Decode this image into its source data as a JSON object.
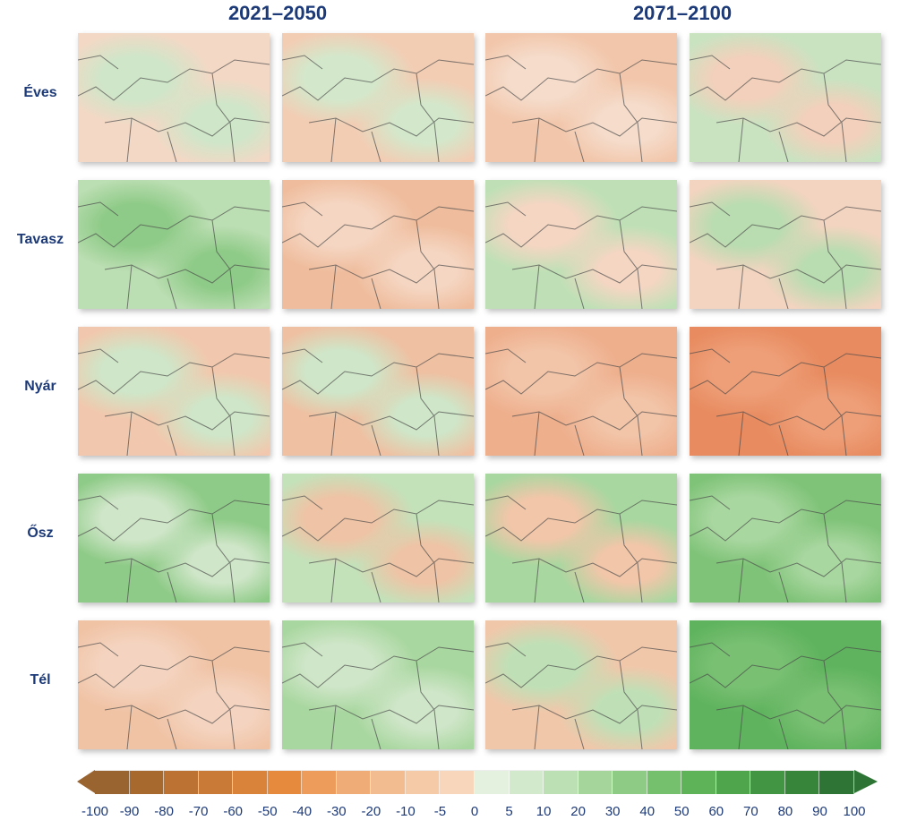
{
  "headers": [
    "2021–2050",
    "2071–2100"
  ],
  "rows": [
    {
      "label": "Éves",
      "panels": [
        [
          "#f3d8c5",
          "#cfe6c8"
        ],
        [
          "#f2cdb4",
          "#d3e8cb"
        ],
        [
          "#f2c6aa",
          "#f5dccb"
        ],
        [
          "#c9e3c1",
          "#f2d0bb"
        ]
      ]
    },
    {
      "label": "Tavasz",
      "panels": [
        [
          "#bcdeb3",
          "#8fcb88"
        ],
        [
          "#efbd9e",
          "#f5d6c2"
        ],
        [
          "#bfe0b6",
          "#f4d6c3"
        ],
        [
          "#f3d4c0",
          "#b9dcb0"
        ]
      ]
    },
    {
      "label": "Nyár",
      "panels": [
        [
          "#f1c8ad",
          "#cfe6c8"
        ],
        [
          "#efc0a2",
          "#cfe6c8"
        ],
        [
          "#eeaf8d",
          "#f2c4a8"
        ],
        [
          "#e88b60",
          "#ee9f78"
        ]
      ]
    },
    {
      "label": "Ősz",
      "panels": [
        [
          "#8fcb88",
          "#cfe6c8"
        ],
        [
          "#c3e2ba",
          "#efc3a5"
        ],
        [
          "#a8d79f",
          "#f1c6a9"
        ],
        [
          "#7fc378",
          "#a9d7a0"
        ]
      ]
    },
    {
      "label": "Tél",
      "panels": [
        [
          "#f0c3a5",
          "#f4d4c0"
        ],
        [
          "#a9d7a0",
          "#cfe6c8"
        ],
        [
          "#f1c7aa",
          "#bfe0b6"
        ],
        [
          "#5fb35e",
          "#79c073"
        ]
      ]
    }
  ],
  "colorbar": {
    "ticks": [
      "-100",
      "-90",
      "-80",
      "-70",
      "-60",
      "-50",
      "-40",
      "-30",
      "-20",
      "-10",
      "-5",
      "0",
      "5",
      "10",
      "20",
      "30",
      "40",
      "50",
      "60",
      "70",
      "80",
      "90",
      "100"
    ],
    "colors": [
      "#9a6430",
      "#a8692e",
      "#bb7232",
      "#c97a36",
      "#d8823a",
      "#e68b3e",
      "#ed9c5c",
      "#f0ac76",
      "#f3bc90",
      "#f5caa6",
      "#f7d6bc",
      "#e4f1df",
      "#d2e9cb",
      "#bcdfb3",
      "#a6d59c",
      "#8ecb85",
      "#75c06c",
      "#5eb358",
      "#4fa54b",
      "#419543",
      "#37853b",
      "#2e7535"
    ],
    "low_color": "#9a6430",
    "high_color": "#2e7535"
  }
}
